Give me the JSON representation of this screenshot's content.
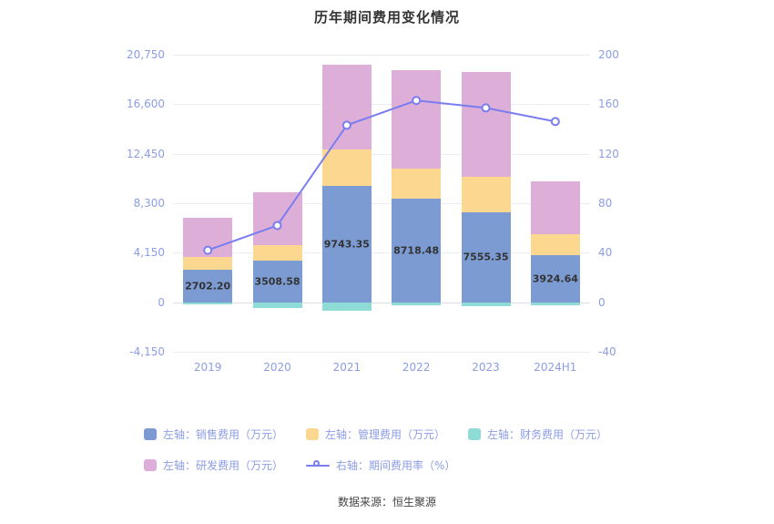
{
  "title": "历年期间费用变化情况",
  "footer": "数据来源：恒生聚源",
  "colors": {
    "sales": "#7b9bd2",
    "management": "#fbd78f",
    "finance": "#8edcd5",
    "rnd": "#ddafd8",
    "line": "#7a7df0",
    "axis_text": "#8c9de4",
    "grid": "#ececf5",
    "label_text": "#333333",
    "background": "#ffffff"
  },
  "legend": {
    "items": [
      {
        "key": "sales",
        "label": "左轴：销售费用（万元）",
        "type": "rect"
      },
      {
        "key": "management",
        "label": "左轴：管理费用（万元）",
        "type": "rect"
      },
      {
        "key": "finance",
        "label": "左轴：财务费用（万元）",
        "type": "rect"
      },
      {
        "key": "rnd",
        "label": "左轴：研发费用（万元）",
        "type": "rect"
      },
      {
        "key": "line",
        "label": "右轴：期间费用率（%）",
        "type": "line"
      }
    ]
  },
  "chart_data": {
    "type": "bar",
    "subtype": "stacked-bars-with-line-overlay",
    "title": "历年期间费用变化情况",
    "categories": [
      "2019",
      "2020",
      "2021",
      "2022",
      "2023",
      "2024H1"
    ],
    "series": [
      {
        "key": "sales",
        "name": "左轴：销售费用（万元）",
        "axis": "left",
        "type": "bar",
        "values": [
          2702.2,
          3508.58,
          9743.35,
          8718.48,
          7555.35,
          3924.64
        ],
        "labels": [
          "2702.20",
          "3508.58",
          "9743.35",
          "8718.48",
          "7555.35",
          "3924.64"
        ]
      },
      {
        "key": "management",
        "name": "左轴：管理费用（万元）",
        "axis": "left",
        "type": "bar",
        "values": [
          1100,
          1250,
          3100,
          2450,
          2950,
          1750
        ]
      },
      {
        "key": "finance",
        "name": "左轴：财务费用（万元）",
        "axis": "left",
        "type": "bar",
        "values": [
          -150,
          -500,
          -750,
          -250,
          -350,
          -250
        ]
      },
      {
        "key": "rnd",
        "name": "左轴：研发费用（万元）",
        "axis": "left",
        "type": "bar",
        "values": [
          3250,
          4450,
          7050,
          8250,
          8800,
          4450
        ]
      },
      {
        "key": "ratio",
        "name": "右轴：期间费用率（%）",
        "axis": "right",
        "type": "line",
        "values": [
          42,
          62,
          143,
          163,
          157,
          146
        ]
      }
    ],
    "left_axis": {
      "min": -4150,
      "max": 20750,
      "tick_values": [
        20750,
        16600,
        12450,
        8300,
        4150,
        0,
        -4150
      ],
      "ticks": [
        "20,750",
        "16,600",
        "12,450",
        "8,300",
        "4,150",
        "0",
        "-4,150"
      ]
    },
    "right_axis": {
      "min": -40,
      "max": 200,
      "tick_values": [
        200,
        160,
        120,
        80,
        40,
        0,
        -40
      ],
      "ticks": [
        "200",
        "160",
        "120",
        "80",
        "40",
        "0",
        "-40"
      ]
    },
    "grid": true,
    "legend_position": "bottom"
  }
}
